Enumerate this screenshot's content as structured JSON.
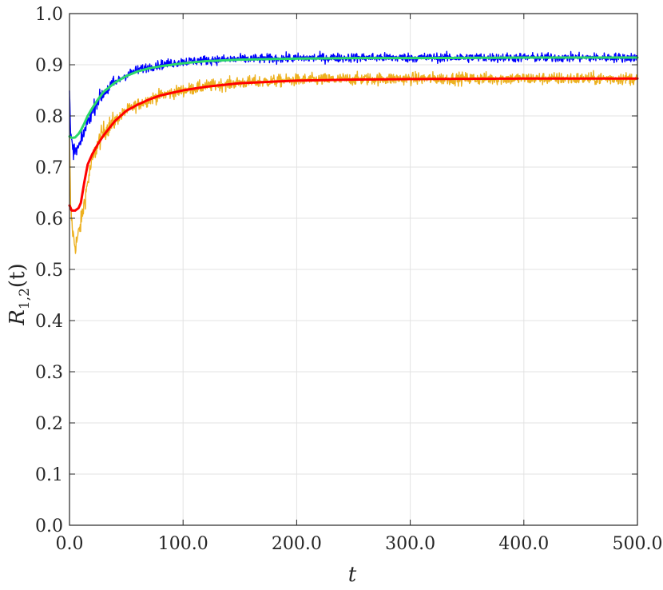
{
  "chart_data": {
    "type": "line",
    "title": "",
    "xlabel": "t",
    "ylabel_main": "R",
    "ylabel_sub": "1,2",
    "ylabel_arg": "(t)",
    "xlim": [
      0,
      500
    ],
    "ylim": [
      0,
      1
    ],
    "grid": true,
    "xticks": [
      0,
      100,
      200,
      300,
      400,
      500
    ],
    "xtick_labels": [
      "0.0",
      "100.0",
      "200.0",
      "300.0",
      "400.0",
      "500.0"
    ],
    "yticks": [
      0,
      0.1,
      0.2,
      0.3,
      0.4,
      0.5,
      0.6,
      0.7,
      0.8,
      0.9,
      1.0
    ],
    "ytick_labels": [
      "0.0",
      "0.1",
      "0.2",
      "0.3",
      "0.4",
      "0.5",
      "0.6",
      "0.7",
      "0.8",
      "0.9",
      "1.0"
    ],
    "series": [
      {
        "color": "#EDB120",
        "style": "noisy",
        "noise_amplitude": 0.012,
        "x": [
          0,
          1,
          3,
          5,
          7,
          10,
          13,
          16,
          20,
          25,
          30,
          40,
          50,
          60,
          70,
          80,
          100,
          120,
          150,
          200,
          250,
          300,
          400,
          500
        ],
        "y": [
          0.75,
          0.62,
          0.57,
          0.545,
          0.56,
          0.59,
          0.63,
          0.67,
          0.715,
          0.745,
          0.77,
          0.79,
          0.81,
          0.822,
          0.832,
          0.84,
          0.85,
          0.858,
          0.865,
          0.87,
          0.872,
          0.873,
          0.873,
          0.873
        ]
      },
      {
        "color": "#0000FF",
        "style": "noisy",
        "noise_amplitude": 0.009,
        "x": [
          0,
          1,
          3,
          5,
          7,
          10,
          13,
          16,
          20,
          25,
          30,
          40,
          50,
          60,
          70,
          80,
          100,
          120,
          150,
          200,
          250,
          300,
          400,
          500
        ],
        "y": [
          0.845,
          0.76,
          0.735,
          0.73,
          0.735,
          0.748,
          0.77,
          0.79,
          0.81,
          0.83,
          0.845,
          0.865,
          0.88,
          0.89,
          0.896,
          0.9,
          0.906,
          0.909,
          0.911,
          0.913,
          0.914,
          0.914,
          0.914,
          0.914
        ]
      },
      {
        "color": "#FF0000",
        "style": "smooth",
        "x": [
          0,
          2,
          5,
          8,
          10,
          13,
          16,
          20,
          25,
          30,
          40,
          50,
          60,
          70,
          80,
          100,
          120,
          150,
          200,
          250,
          300,
          400,
          500
        ],
        "y": [
          0.625,
          0.615,
          0.615,
          0.62,
          0.63,
          0.67,
          0.705,
          0.725,
          0.745,
          0.762,
          0.79,
          0.81,
          0.822,
          0.832,
          0.84,
          0.85,
          0.857,
          0.864,
          0.869,
          0.871,
          0.872,
          0.873,
          0.873
        ]
      },
      {
        "color": "#2BD86A",
        "style": "smooth",
        "x": [
          0,
          2,
          5,
          8,
          10,
          13,
          16,
          20,
          25,
          30,
          40,
          50,
          60,
          70,
          80,
          100,
          120,
          150,
          200,
          250,
          300,
          400,
          500
        ],
        "y": [
          0.76,
          0.757,
          0.758,
          0.765,
          0.772,
          0.785,
          0.8,
          0.815,
          0.832,
          0.847,
          0.865,
          0.878,
          0.887,
          0.893,
          0.897,
          0.903,
          0.907,
          0.91,
          0.912,
          0.913,
          0.913,
          0.914,
          0.914
        ]
      }
    ]
  }
}
